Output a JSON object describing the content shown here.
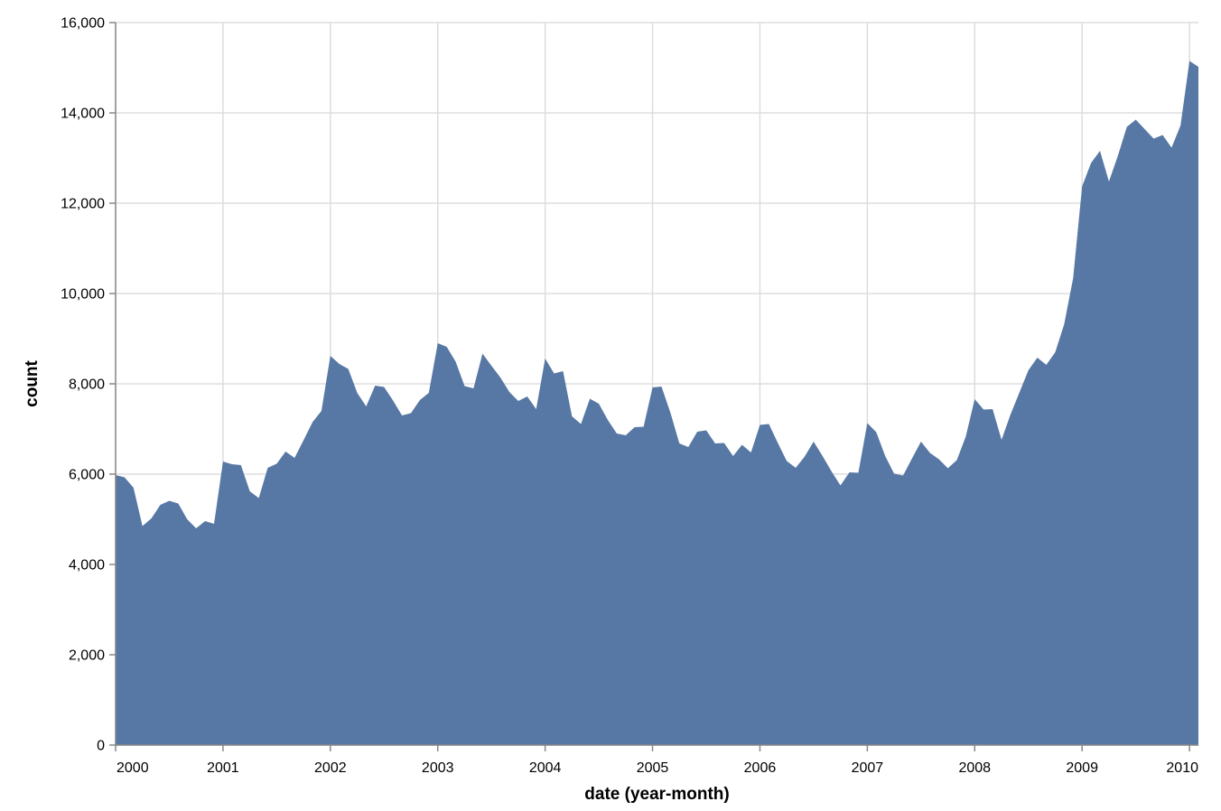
{
  "chart_data": {
    "type": "area",
    "xlabel": "date (year-month)",
    "ylabel": "count",
    "xlim": [
      "2000-01",
      "2010-02"
    ],
    "ylim": [
      0,
      16000
    ],
    "y_ticks": [
      0,
      2000,
      4000,
      6000,
      8000,
      10000,
      12000,
      14000,
      16000
    ],
    "y_tick_labels": [
      "0",
      "2,000",
      "4,000",
      "6,000",
      "8,000",
      "10,000",
      "12,000",
      "14,000",
      "16,000"
    ],
    "x_ticks": [
      "2000-01",
      "2001-01",
      "2002-01",
      "2003-01",
      "2004-01",
      "2005-01",
      "2006-01",
      "2007-01",
      "2008-01",
      "2009-01",
      "2010-01"
    ],
    "x_tick_labels": [
      "2000",
      "2001",
      "2002",
      "2003",
      "2004",
      "2005",
      "2006",
      "2007",
      "2008",
      "2009",
      "2010"
    ],
    "grid": true,
    "fill_color": "#5778a4",
    "series": [
      {
        "x": [
          "2000-01",
          "2000-02",
          "2000-03",
          "2000-04",
          "2000-05",
          "2000-06",
          "2000-07",
          "2000-08",
          "2000-09",
          "2000-10",
          "2000-11",
          "2000-12",
          "2001-01",
          "2001-02",
          "2001-03",
          "2001-04",
          "2001-05",
          "2001-06",
          "2001-07",
          "2001-08",
          "2001-09",
          "2001-10",
          "2001-11",
          "2001-12",
          "2002-01",
          "2002-02",
          "2002-03",
          "2002-04",
          "2002-05",
          "2002-06",
          "2002-07",
          "2002-08",
          "2002-09",
          "2002-10",
          "2002-11",
          "2002-12",
          "2003-01",
          "2003-02",
          "2003-03",
          "2003-04",
          "2003-05",
          "2003-06",
          "2003-07",
          "2003-08",
          "2003-09",
          "2003-10",
          "2003-11",
          "2003-12",
          "2004-01",
          "2004-02",
          "2004-03",
          "2004-04",
          "2004-05",
          "2004-06",
          "2004-07",
          "2004-08",
          "2004-09",
          "2004-10",
          "2004-11",
          "2004-12",
          "2005-01",
          "2005-02",
          "2005-03",
          "2005-04",
          "2005-05",
          "2005-06",
          "2005-07",
          "2005-08",
          "2005-09",
          "2005-10",
          "2005-11",
          "2005-12",
          "2006-01",
          "2006-02",
          "2006-03",
          "2006-04",
          "2006-05",
          "2006-06",
          "2006-07",
          "2006-08",
          "2006-09",
          "2006-10",
          "2006-11",
          "2006-12",
          "2007-01",
          "2007-02",
          "2007-03",
          "2007-04",
          "2007-05",
          "2007-06",
          "2007-07",
          "2007-08",
          "2007-09",
          "2007-10",
          "2007-11",
          "2007-12",
          "2008-01",
          "2008-02",
          "2008-03",
          "2008-04",
          "2008-05",
          "2008-06",
          "2008-07",
          "2008-08",
          "2008-09",
          "2008-10",
          "2008-11",
          "2008-12",
          "2009-01",
          "2009-02",
          "2009-03",
          "2009-04",
          "2009-05",
          "2009-06",
          "2009-07",
          "2009-08",
          "2009-09",
          "2009-10",
          "2009-11",
          "2009-12",
          "2010-01",
          "2010-02"
        ],
        "values": [
          5980,
          5930,
          5700,
          4850,
          5020,
          5320,
          5410,
          5350,
          5000,
          4800,
          4960,
          4900,
          6280,
          6220,
          6200,
          5620,
          5470,
          6140,
          6230,
          6500,
          6360,
          6750,
          7150,
          7400,
          8620,
          8440,
          8330,
          7800,
          7500,
          7960,
          7930,
          7630,
          7300,
          7350,
          7640,
          7800,
          8900,
          8820,
          8490,
          7950,
          7900,
          8670,
          8400,
          8140,
          7820,
          7620,
          7720,
          7440,
          8560,
          8230,
          8280,
          7280,
          7110,
          7670,
          7560,
          7200,
          6900,
          6860,
          7040,
          7050,
          7920,
          7940,
          7360,
          6680,
          6600,
          6940,
          6970,
          6680,
          6690,
          6400,
          6650,
          6480,
          7090,
          7110,
          6690,
          6290,
          6140,
          6390,
          6720,
          6400,
          6060,
          5750,
          6040,
          6030,
          7130,
          6930,
          6400,
          6010,
          5970,
          6350,
          6720,
          6470,
          6330,
          6130,
          6310,
          6830,
          7660,
          7430,
          7440,
          6760,
          7320,
          7810,
          8300,
          8580,
          8420,
          8700,
          9320,
          10340,
          12370,
          12890,
          13160,
          12480,
          13050,
          13690,
          13850,
          13640,
          13430,
          13510,
          13230,
          13720,
          15150,
          15020
        ]
      }
    ]
  }
}
